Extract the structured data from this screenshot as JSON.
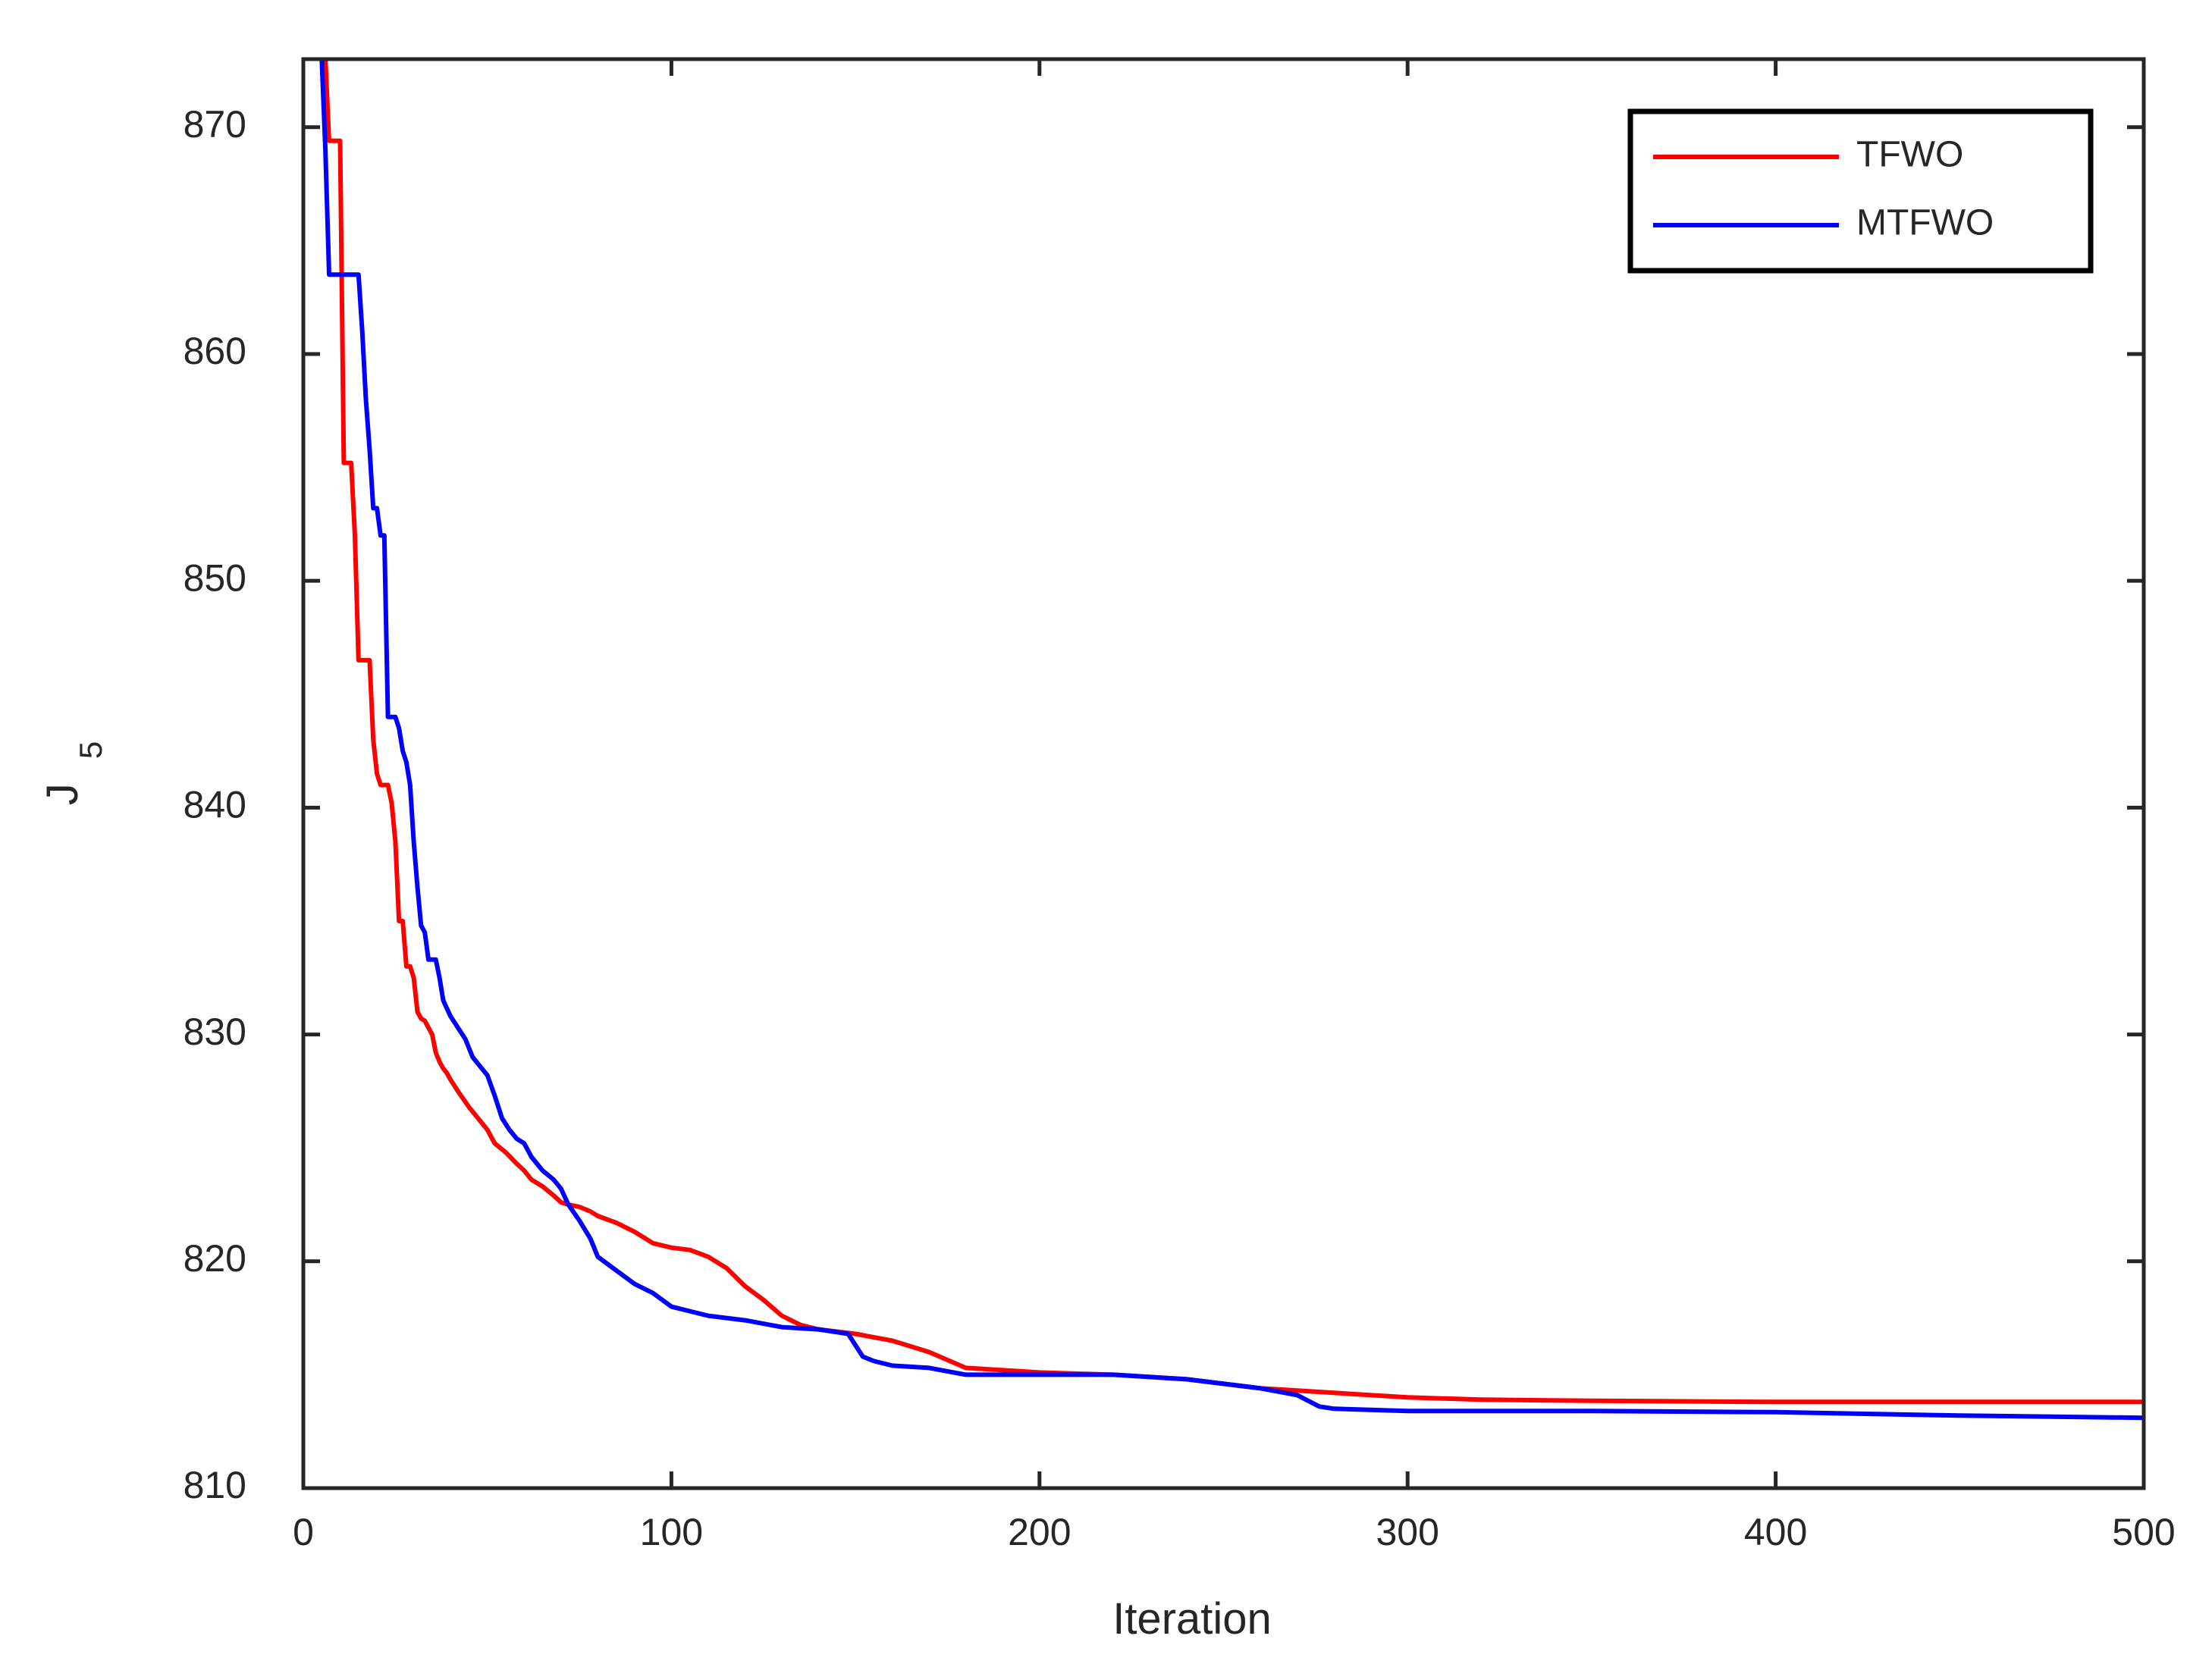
{
  "chart_data": {
    "type": "line",
    "title": "",
    "xlabel": "Iteration",
    "ylabel": {
      "main": "J",
      "subscript": "5"
    },
    "xlim": [
      0,
      500
    ],
    "ylim": [
      810,
      873
    ],
    "xticks": [
      0,
      100,
      200,
      300,
      400,
      500
    ],
    "yticks": [
      810,
      820,
      830,
      840,
      850,
      860,
      870
    ],
    "grid": false,
    "legend": {
      "placement": "top-right",
      "boxed": true
    },
    "series": [
      {
        "name": "TFWO",
        "color": "#ff0000",
        "x": [
          5,
          6,
          7,
          8,
          10,
          11,
          12,
          13,
          14,
          15,
          16,
          17,
          18,
          19,
          20,
          21,
          22,
          23,
          24,
          25,
          26,
          27,
          28,
          29,
          30,
          31,
          32,
          33,
          34,
          35,
          36,
          37,
          38,
          39,
          40,
          42,
          45,
          48,
          50,
          52,
          55,
          58,
          60,
          62,
          65,
          68,
          70,
          72,
          75,
          78,
          80,
          85,
          90,
          95,
          100,
          105,
          110,
          115,
          120,
          125,
          130,
          135,
          140,
          150,
          160,
          170,
          180,
          200,
          220,
          240,
          260,
          280,
          300,
          320,
          350,
          400,
          450,
          500
        ],
        "y": [
          873,
          873,
          869.4,
          869.4,
          869.4,
          855.2,
          855.2,
          855.2,
          852,
          846.5,
          846.5,
          846.5,
          846.5,
          843,
          841.5,
          841,
          841,
          841,
          840.2,
          838.5,
          835,
          835,
          833,
          833,
          832.5,
          831,
          830.7,
          830.6,
          830.3,
          830,
          829.2,
          828.8,
          828.5,
          828.3,
          828,
          827.5,
          826.8,
          826.2,
          825.8,
          825.2,
          824.8,
          824.3,
          824,
          823.6,
          823.3,
          822.9,
          822.6,
          822.5,
          822.4,
          822.2,
          822,
          821.7,
          821.3,
          820.8,
          820.6,
          820.5,
          820.2,
          819.7,
          818.9,
          818.3,
          817.6,
          817.2,
          817,
          816.8,
          816.5,
          816,
          815.3,
          815.1,
          815,
          814.8,
          814.4,
          814.2,
          814,
          813.9,
          813.85,
          813.8,
          813.8,
          813.8
        ]
      },
      {
        "name": "MTFWO",
        "color": "#0000ff",
        "x": [
          5,
          6,
          7,
          10,
          13,
          14,
          15,
          16,
          17,
          18,
          19,
          20,
          21,
          22,
          23,
          24,
          25,
          26,
          27,
          28,
          29,
          30,
          31,
          32,
          33,
          34,
          35,
          36,
          37,
          38,
          40,
          42,
          44,
          46,
          48,
          50,
          52,
          54,
          56,
          58,
          60,
          62,
          65,
          68,
          70,
          72,
          75,
          78,
          80,
          85,
          90,
          95,
          100,
          105,
          110,
          120,
          130,
          140,
          148,
          152,
          155,
          160,
          170,
          180,
          200,
          220,
          240,
          260,
          270,
          276,
          280,
          300,
          350,
          400,
          450,
          500
        ],
        "y": [
          873,
          869,
          863.5,
          863.5,
          863.5,
          863.5,
          863.5,
          861,
          858,
          855.8,
          853.2,
          853.2,
          852,
          852,
          844,
          844,
          844,
          843.5,
          842.5,
          842,
          841,
          838.5,
          836.5,
          834.8,
          834.5,
          833.3,
          833.3,
          833.3,
          832.5,
          831.5,
          830.8,
          830.3,
          829.8,
          829,
          828.6,
          828.2,
          827.3,
          826.3,
          825.8,
          825.4,
          825.2,
          824.6,
          824,
          823.6,
          823.2,
          822.5,
          821.8,
          821,
          820.2,
          819.6,
          819,
          818.6,
          818,
          817.8,
          817.6,
          817.4,
          817.1,
          817,
          816.8,
          815.8,
          815.6,
          815.4,
          815.3,
          815,
          815,
          815,
          814.8,
          814.4,
          814.1,
          813.6,
          813.5,
          813.4,
          813.4,
          813.35,
          813.2,
          813.1
        ]
      }
    ]
  }
}
